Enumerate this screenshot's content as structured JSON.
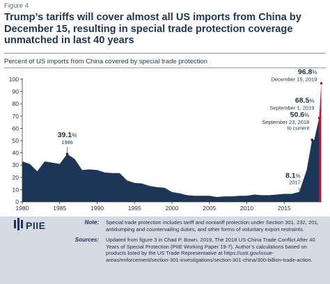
{
  "figure_label": "Figure 4",
  "title": "Trump’s tariffs will cover almost all US imports from China by December 15, resulting in special trade protection coverage unmatched in last 40 years",
  "subtitle": "Percent of US imports from China covered by special trade protection",
  "colors": {
    "area_fill": "#1b3656",
    "highlight": "#c8102e",
    "footer_bg": "#d5dae3",
    "title": "#1b3656"
  },
  "chart_data": {
    "type": "area",
    "title": "Trump’s tariffs will cover almost all US imports from China by December 15, resulting in special trade protection coverage unmatched in last 40 years",
    "ylabel": "Percent of US imports from China covered by special trade protection",
    "xlabel": "",
    "xlim": [
      1980,
      2020
    ],
    "ylim": [
      0,
      100
    ],
    "x_ticks": [
      1980,
      1985,
      1990,
      1995,
      2000,
      2005,
      2010,
      2015
    ],
    "y_ticks": [
      0,
      10,
      20,
      30,
      40,
      50,
      60,
      70,
      80,
      90,
      100
    ],
    "grid": false,
    "x": [
      1980,
      1981,
      1982,
      1983,
      1984,
      1985,
      1986,
      1987,
      1988,
      1989,
      1990,
      1991,
      1992,
      1993,
      1994,
      1995,
      1996,
      1997,
      1998,
      1999,
      2000,
      2001,
      2002,
      2003,
      2004,
      2005,
      2006,
      2007,
      2008,
      2009,
      2010,
      2011,
      2012,
      2013,
      2014,
      2015,
      2016,
      2017,
      2018,
      2018.72,
      2019,
      2019.67,
      2019.95
    ],
    "y": [
      33,
      31,
      25,
      33,
      32,
      31,
      39.1,
      35,
      26,
      26.5,
      26,
      24,
      23.5,
      23.5,
      17.5,
      15.5,
      15,
      13,
      12,
      11.5,
      8,
      7,
      5.5,
      5,
      5,
      5,
      4,
      4.5,
      4.5,
      5,
      5,
      6,
      5.5,
      5.5,
      6,
      6.5,
      6.5,
      8.1,
      26,
      50.6,
      50.6,
      68.5,
      96.8
    ],
    "annotations": [
      {
        "x": 1986,
        "value": "39.1",
        "unit": "%",
        "label": "1986"
      },
      {
        "x": 2017,
        "value": "8.1",
        "unit": "%",
        "label": "2017"
      },
      {
        "x": 2018.72,
        "value": "50.6",
        "unit": "%",
        "label": "September 23, 2018\nto current"
      },
      {
        "x": 2019.67,
        "value": "68.5",
        "unit": "%",
        "label": "September 1, 2019"
      },
      {
        "x": 2019.95,
        "value": "96.8",
        "unit": "%",
        "label": "December 15, 2019"
      }
    ]
  },
  "footer": {
    "logo_text": "PIIE",
    "note_label": "Note:",
    "note_text": "Special trade protection includes tariff and nontariff protection under Section 301, 232, 201, antidumping and countervailing duties, and other forms of voluntary export restraints.",
    "sources_label": "Sources:",
    "sources_text": "Updated from figure 3 in Chad P. Bown, 2019, The 2018 US-China Trade Conflict After 40 Years of Special Protection (PIIE Working Paper 19-7). Author’s calculations based on products listed by the US Trade Representative at https://ustr.gov/issue-areas/enforcement/section-301-investigations/section-301-china/300-billion-trade-action."
  }
}
